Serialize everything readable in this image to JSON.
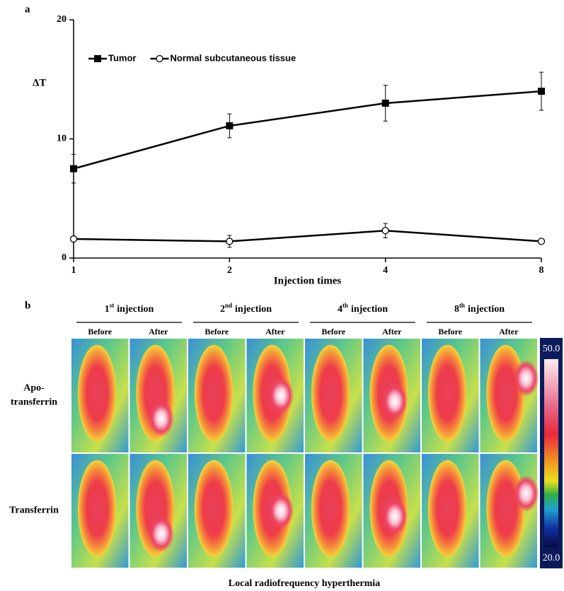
{
  "chart_data": {
    "type": "line",
    "panel_label": "a",
    "categories": [
      "1",
      "2",
      "4",
      "8"
    ],
    "x_label": "Injection times",
    "y_label": "ΔT",
    "ylim": [
      0,
      20
    ],
    "yticks": [
      0,
      10,
      20
    ],
    "series": [
      {
        "name": "Tumor",
        "color": "#000000",
        "marker": "square",
        "values": [
          7.5,
          11.1,
          13.0,
          14.0
        ],
        "errors": [
          1.2,
          1.0,
          1.5,
          1.6
        ]
      },
      {
        "name": "Normal subcutaneous tissue",
        "color": "#000000",
        "marker": "circle",
        "values": [
          1.6,
          1.4,
          2.3,
          1.4
        ],
        "errors": [
          0.2,
          0.5,
          0.6,
          0.1
        ]
      }
    ]
  },
  "thermal_panel": {
    "panel_label": "b",
    "injections": [
      {
        "number": "1",
        "suffix": "st",
        "text": "injection"
      },
      {
        "number": "2",
        "suffix": "nd",
        "text": "injection"
      },
      {
        "number": "4",
        "suffix": "th",
        "text": "injection"
      },
      {
        "number": "8",
        "suffix": "th",
        "text": "injection"
      }
    ],
    "phases": [
      "Before",
      "After"
    ],
    "rows": [
      {
        "lines": [
          "Apo-",
          "transferrin"
        ]
      },
      {
        "lines": [
          "Transferrin"
        ]
      }
    ],
    "colorbar": {
      "max_label": "50.0",
      "min_label": "20.0"
    },
    "caption": "Local radiofrequency hyperthermia"
  }
}
